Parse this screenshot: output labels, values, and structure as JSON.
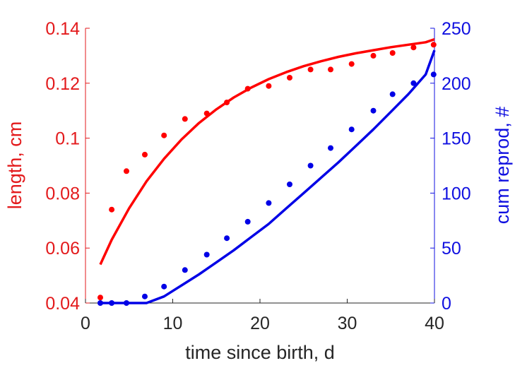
{
  "chart_data": {
    "type": "scatter",
    "title": "",
    "xlabel": "time since birth, d",
    "ylabel": "length, cm",
    "y2label": "cum reprod, #",
    "xlim": [
      0,
      40
    ],
    "ylim": [
      0.04,
      0.14
    ],
    "y2lim": [
      0,
      250
    ],
    "xticks": [
      "0",
      "10",
      "20",
      "30",
      "40"
    ],
    "yticks": [
      "0.04",
      "0.06",
      "0.08",
      "0.1",
      "0.12",
      "0.14"
    ],
    "y2ticks": [
      "0",
      "50",
      "100",
      "150",
      "200",
      "250"
    ],
    "grid": false,
    "colors": {
      "length": "#ff0000",
      "reprod": "#0000e6",
      "axis_left": "#e31a1c",
      "axis_right": "#1010e0",
      "axis_x": "#262626"
    },
    "series": [
      {
        "kind": "points",
        "axis": "left",
        "color": "#ff0000",
        "x": [
          1.7,
          3.0,
          4.7,
          6.8,
          9.0,
          11.4,
          13.9,
          16.2,
          18.6,
          21.0,
          23.4,
          25.8,
          28.1,
          30.5,
          33.0,
          35.2,
          37.6,
          39.9
        ],
        "y": [
          0.042,
          0.074,
          0.088,
          0.094,
          0.101,
          0.107,
          0.109,
          0.113,
          0.118,
          0.119,
          0.122,
          0.125,
          0.125,
          0.127,
          0.13,
          0.131,
          0.133,
          0.134
        ]
      },
      {
        "kind": "curve",
        "axis": "left",
        "color": "#ff0000",
        "x": [
          1.7,
          3,
          5,
          7,
          9,
          11,
          13,
          15,
          17,
          19,
          21,
          23,
          25,
          27,
          29,
          31,
          33,
          35,
          37,
          39,
          40
        ],
        "y": [
          0.054,
          0.063,
          0.0745,
          0.0843,
          0.0925,
          0.0995,
          0.1055,
          0.1105,
          0.1148,
          0.1184,
          0.1215,
          0.124,
          0.1262,
          0.128,
          0.1296,
          0.1309,
          0.132,
          0.1331,
          0.134,
          0.1349,
          0.136
        ]
      },
      {
        "kind": "points",
        "axis": "right",
        "color": "#0000e6",
        "x": [
          1.7,
          3.0,
          4.7,
          6.8,
          9.0,
          11.4,
          13.9,
          16.2,
          18.6,
          21.0,
          23.4,
          25.8,
          28.1,
          30.5,
          33.0,
          35.2,
          37.6,
          39.9
        ],
        "y": [
          0,
          0,
          0,
          6,
          15,
          30,
          44,
          59,
          74,
          91,
          108,
          125,
          141,
          158,
          175,
          190,
          200,
          208
        ]
      },
      {
        "kind": "curve",
        "axis": "right",
        "color": "#0000e6",
        "x": [
          1.7,
          3,
          5,
          7,
          9,
          11,
          13,
          15,
          17,
          19,
          21,
          23,
          25,
          27,
          29,
          31,
          33,
          35,
          37,
          39,
          40
        ],
        "y": [
          0,
          0,
          0,
          0,
          6,
          16,
          26,
          37,
          48,
          60,
          72,
          86,
          100,
          114,
          128,
          143,
          158,
          174,
          190,
          208,
          230
        ]
      }
    ]
  }
}
